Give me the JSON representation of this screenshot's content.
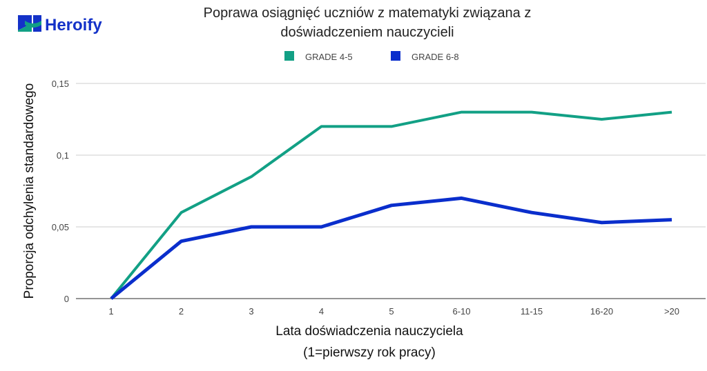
{
  "logo": {
    "text": "Heroify"
  },
  "chart_data": {
    "type": "line",
    "title": [
      "Poprawa osiągnięć uczniów z matematyki związana z",
      "doświadczeniem nauczycieli"
    ],
    "xlabel": [
      "Lata doświadczenia nauczyciela",
      "(1=pierwszy rok pracy)"
    ],
    "ylabel": "Proporcja odchylenia standardowego",
    "categories": [
      "1",
      "2",
      "3",
      "4",
      "5",
      "6-10",
      "11-15",
      "16-20",
      ">20"
    ],
    "ylim": [
      0,
      0.15
    ],
    "yticks": [
      0,
      0.05,
      0.1,
      0.15
    ],
    "ytick_labels": [
      "0",
      "0,05",
      "0,1",
      "0,15"
    ],
    "grid": true,
    "legend_position": "top",
    "series": [
      {
        "name": "GRADE 4-5",
        "color": "#12a085",
        "values": [
          0,
          0.06,
          0.085,
          0.12,
          0.12,
          0.13,
          0.13,
          0.125,
          0.13
        ]
      },
      {
        "name": "GRADE 6-8",
        "color": "#0a2ecc",
        "values": [
          0,
          0.04,
          0.05,
          0.05,
          0.065,
          0.07,
          0.06,
          0.053,
          0.055
        ]
      }
    ]
  }
}
